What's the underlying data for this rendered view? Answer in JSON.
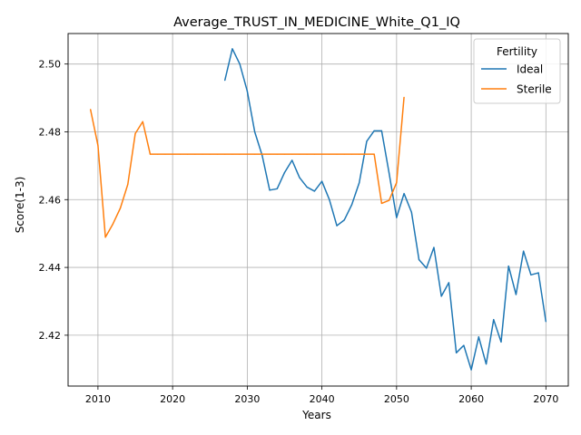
{
  "chart_data": {
    "type": "line",
    "title": "Average_TRUST_IN_MEDICINE_White_Q1_IQ",
    "xlabel": "Years",
    "ylabel": "Score(1-3)",
    "xlim": [
      2006,
      2073
    ],
    "ylim": [
      2.405,
      2.509
    ],
    "xticks": [
      2010,
      2020,
      2030,
      2040,
      2050,
      2060,
      2070
    ],
    "yticks": [
      2.42,
      2.44,
      2.46,
      2.48,
      2.5
    ],
    "ytick_labels": [
      "2.42",
      "2.44",
      "2.46",
      "2.48",
      "2.50"
    ],
    "grid": true,
    "legend": {
      "title": "Fertility",
      "placement": "top-right"
    },
    "series": [
      {
        "name": "Ideal",
        "color": "#1f77b4",
        "x": [
          2027,
          2028,
          2029,
          2030,
          2031,
          2032,
          2033,
          2034,
          2035,
          2036,
          2037,
          2038,
          2039,
          2040,
          2041,
          2042,
          2043,
          2044,
          2045,
          2046,
          2047,
          2048,
          2049,
          2050,
          2051,
          2052,
          2053,
          2054,
          2055,
          2056,
          2057,
          2058,
          2059,
          2060,
          2061,
          2062,
          2063,
          2064,
          2065,
          2066,
          2067,
          2068,
          2069,
          2070
        ],
        "y": [
          2.4952,
          2.5045,
          2.5,
          2.492,
          2.48,
          2.473,
          2.4628,
          2.4632,
          2.468,
          2.4716,
          2.4665,
          2.4637,
          2.4625,
          2.4654,
          2.46,
          2.4523,
          2.454,
          2.4585,
          2.465,
          2.4772,
          2.4803,
          2.4803,
          2.4678,
          2.4547,
          2.4618,
          2.4563,
          2.4423,
          2.4398,
          2.4459,
          2.4315,
          2.4355,
          2.4148,
          2.417,
          2.4098,
          2.4195,
          2.4115,
          2.4246,
          2.418,
          2.4404,
          2.432,
          2.4448,
          2.4378,
          2.4384,
          2.424
        ]
      },
      {
        "name": "Sterile",
        "color": "#ff7f0e",
        "x": [
          2009,
          2010,
          2011,
          2012,
          2013,
          2014,
          2015,
          2016,
          2017,
          2018,
          2019,
          2020,
          2021,
          2022,
          2023,
          2024,
          2025,
          2026,
          2027,
          2028,
          2029,
          2030,
          2031,
          2032,
          2033,
          2034,
          2035,
          2036,
          2037,
          2038,
          2039,
          2040,
          2041,
          2042,
          2043,
          2044,
          2045,
          2046,
          2047,
          2048,
          2049,
          2050,
          2051
        ],
        "y": [
          2.4866,
          2.476,
          2.4489,
          2.4528,
          2.4575,
          2.4645,
          2.4795,
          2.483,
          2.4734,
          2.4734,
          2.4734,
          2.4734,
          2.4734,
          2.4734,
          2.4734,
          2.4734,
          2.4734,
          2.4734,
          2.4734,
          2.4734,
          2.4734,
          2.4734,
          2.4734,
          2.4734,
          2.4734,
          2.4734,
          2.4734,
          2.4734,
          2.4734,
          2.4734,
          2.4734,
          2.4734,
          2.4734,
          2.4734,
          2.4734,
          2.4734,
          2.4734,
          2.4734,
          2.4734,
          2.4589,
          2.4598,
          2.465,
          2.4902
        ]
      }
    ]
  }
}
